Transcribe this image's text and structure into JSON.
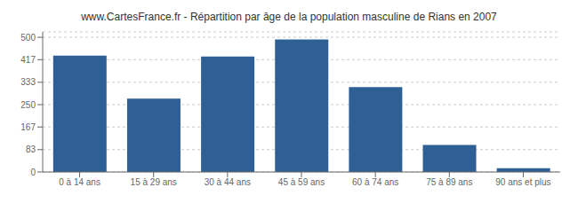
{
  "chart_data": {
    "type": "bar",
    "title": "www.CartesFrance.fr - Répartition par âge de la population masculine de Rians en 2007",
    "categories": [
      "0 à 14 ans",
      "15 à 29 ans",
      "30 à 44 ans",
      "45 à 59 ans",
      "60 à 74 ans",
      "75 à 89 ans",
      "90 ans et plus"
    ],
    "values": [
      432,
      272,
      429,
      492,
      315,
      100,
      14
    ],
    "color": "#2e6096",
    "ylim": [
      0,
      520
    ],
    "yticks": [
      0,
      83,
      167,
      250,
      333,
      417,
      500
    ],
    "grid": true
  }
}
